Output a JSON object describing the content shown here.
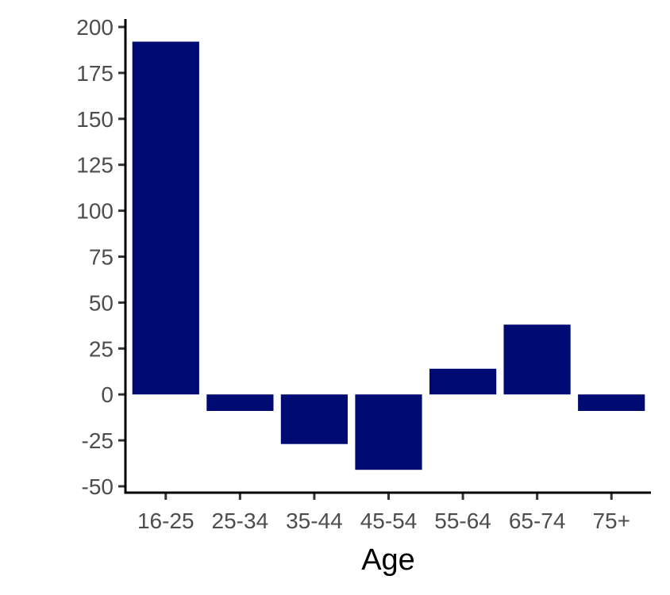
{
  "chart_data": {
    "type": "bar",
    "title": "",
    "xlabel": "Age",
    "ylabel": "",
    "categories": [
      "16-25",
      "25-34",
      "35-44",
      "45-54",
      "55-64",
      "65-74",
      "75+"
    ],
    "values": [
      192,
      -9,
      -27,
      -41,
      14,
      38,
      -9
    ],
    "ylim": [
      -50,
      200
    ],
    "yticks": [
      -50,
      -25,
      0,
      25,
      50,
      75,
      100,
      125,
      150,
      175,
      200
    ],
    "grid": false,
    "legend": "none",
    "bar_color": "#000a73"
  }
}
